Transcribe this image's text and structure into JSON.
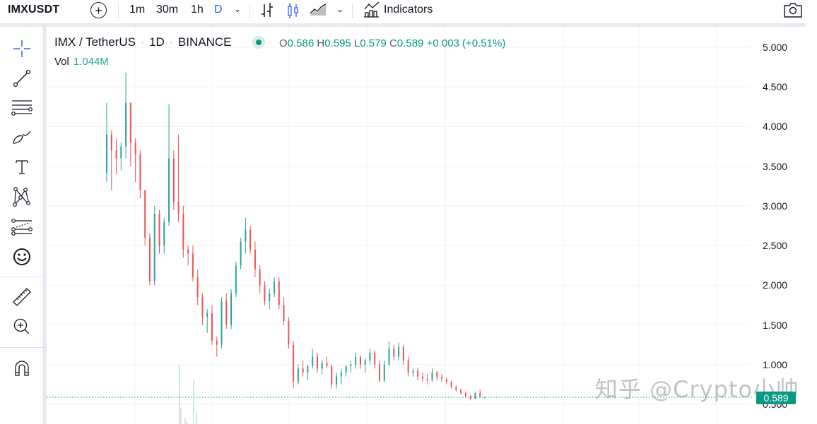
{
  "toolbar": {
    "symbol": "IMXUSDT",
    "add_symbol_icon": "plus-circle-icon",
    "timeframes": [
      {
        "label": "1m",
        "active": false
      },
      {
        "label": "30m",
        "active": false
      },
      {
        "label": "1h",
        "active": false
      },
      {
        "label": "D",
        "active": true
      }
    ],
    "timeframe_dropdown_icon": "chevron-down-icon",
    "chart_types": [
      {
        "icon": "bars-chart-icon",
        "active": false
      },
      {
        "icon": "candles-chart-icon",
        "active": true
      },
      {
        "icon": "area-chart-icon",
        "active": false
      }
    ],
    "chart_type_dropdown_icon": "chevron-down-icon",
    "indicators_label": "Indicators",
    "indicators_icon": "indicators-icon",
    "snapshot_icon": "camera-icon",
    "accent_color": "#2962ff"
  },
  "left_toolbar": {
    "tools": [
      {
        "name": "crosshair-tool",
        "icon": "crosshair-icon"
      },
      {
        "name": "trend-line-tool",
        "icon": "trend-line-icon"
      },
      {
        "name": "fib-retracement-tool",
        "icon": "horizontal-lines-icon"
      },
      {
        "name": "brush-tool",
        "icon": "brush-icon"
      },
      {
        "name": "text-tool",
        "icon": "text-icon"
      },
      {
        "name": "patterns-tool",
        "icon": "pattern-icon"
      },
      {
        "name": "prediction-tool",
        "icon": "forecast-icon"
      },
      {
        "name": "icons-tool",
        "icon": "smiley-icon"
      },
      {
        "name": "measure-tool",
        "icon": "ruler-icon"
      },
      {
        "name": "zoom-in-tool",
        "icon": "zoom-in-icon"
      },
      {
        "name": "magnet-tool",
        "icon": "magnet-icon"
      }
    ]
  },
  "legend": {
    "pair": "IMX / TetherUS",
    "interval": "1D",
    "exchange": "BINANCE",
    "open_key": "O",
    "open": "0.586",
    "high_key": "H",
    "high": "0.595",
    "low_key": "L",
    "low": "0.579",
    "close_key": "C",
    "close": "0.589",
    "change": "+0.003 (+0.51%)",
    "vol_label": "Vol",
    "vol_value": "1.044M"
  },
  "price_axis": {
    "labels": [
      "5.000",
      "4.500",
      "4.000",
      "3.500",
      "3.000",
      "2.500",
      "2.000",
      "1.500",
      "1.000",
      "0.500"
    ],
    "current_price": "0.589",
    "current_price_color": "#089981"
  },
  "colors": {
    "up": "#26a69a",
    "down": "#ef5350",
    "grid": "#f0f3fa"
  },
  "watermark": "知乎 @Crypto小帅",
  "chart_data": {
    "type": "candlestick",
    "title": "IMX / TetherUS · 1D · BINANCE",
    "ylim": [
      0.4,
      5.05
    ],
    "y_ticks": [
      5.0,
      4.5,
      4.0,
      3.5,
      3.0,
      2.5,
      2.0,
      1.5,
      1.0,
      0.5
    ],
    "grid": true,
    "candles": [
      [
        3.42,
        4.3,
        3.3,
        3.9
      ],
      [
        3.9,
        3.95,
        3.2,
        3.7
      ],
      [
        3.7,
        3.85,
        3.4,
        3.6
      ],
      [
        3.6,
        3.8,
        3.45,
        3.75
      ],
      [
        3.75,
        4.68,
        3.6,
        4.3
      ],
      [
        4.3,
        4.3,
        3.5,
        3.8
      ],
      [
        3.8,
        3.85,
        3.3,
        3.65
      ],
      [
        3.65,
        3.7,
        3.1,
        3.2
      ],
      [
        3.2,
        3.2,
        2.5,
        2.6
      ],
      [
        2.6,
        2.65,
        2.0,
        2.05
      ],
      [
        2.05,
        3.0,
        2.0,
        2.9
      ],
      [
        2.9,
        2.95,
        2.4,
        2.5
      ],
      [
        2.5,
        2.85,
        2.4,
        2.8
      ],
      [
        2.8,
        4.28,
        2.75,
        3.6
      ],
      [
        3.6,
        3.7,
        2.95,
        3.05
      ],
      [
        3.05,
        3.9,
        2.8,
        2.9
      ],
      [
        2.9,
        3.0,
        2.35,
        2.45
      ],
      [
        2.45,
        2.5,
        2.25,
        2.4
      ],
      [
        2.4,
        2.5,
        2.05,
        2.1
      ],
      [
        2.1,
        2.2,
        1.75,
        1.85
      ],
      [
        1.85,
        1.9,
        1.5,
        1.6
      ],
      [
        1.6,
        1.7,
        1.4,
        1.65
      ],
      [
        1.65,
        1.75,
        1.25,
        1.3
      ],
      [
        1.3,
        1.35,
        1.1,
        1.25
      ],
      [
        1.25,
        1.85,
        1.2,
        1.8
      ],
      [
        1.8,
        1.9,
        1.45,
        1.5
      ],
      [
        1.5,
        1.95,
        1.45,
        1.9
      ],
      [
        1.9,
        2.3,
        1.85,
        2.25
      ],
      [
        2.25,
        2.6,
        2.2,
        2.55
      ],
      [
        2.55,
        2.85,
        2.4,
        2.7
      ],
      [
        2.7,
        2.75,
        2.4,
        2.45
      ],
      [
        2.45,
        2.55,
        2.1,
        2.2
      ],
      [
        2.2,
        2.25,
        1.9,
        2.0
      ],
      [
        2.0,
        2.05,
        1.75,
        1.8
      ],
      [
        1.8,
        1.95,
        1.7,
        1.9
      ],
      [
        1.9,
        2.1,
        1.85,
        2.05
      ],
      [
        2.05,
        2.1,
        1.7,
        1.75
      ],
      [
        1.75,
        1.85,
        1.5,
        1.55
      ],
      [
        1.55,
        1.6,
        1.2,
        1.25
      ],
      [
        1.25,
        1.3,
        0.7,
        0.78
      ],
      [
        0.78,
        1.0,
        0.75,
        0.95
      ],
      [
        0.95,
        1.05,
        0.85,
        0.9
      ],
      [
        0.9,
        1.0,
        0.8,
        0.98
      ],
      [
        0.98,
        1.2,
        0.95,
        1.1
      ],
      [
        1.1,
        1.15,
        0.9,
        0.95
      ],
      [
        0.95,
        1.05,
        0.88,
        1.02
      ],
      [
        1.02,
        1.1,
        0.95,
        0.98
      ],
      [
        0.98,
        1.0,
        0.7,
        0.75
      ],
      [
        0.75,
        0.9,
        0.7,
        0.85
      ],
      [
        0.85,
        0.95,
        0.75,
        0.9
      ],
      [
        0.9,
        1.0,
        0.85,
        0.98
      ],
      [
        0.98,
        1.05,
        0.9,
        1.0
      ],
      [
        1.0,
        1.15,
        0.95,
        1.1
      ],
      [
        1.1,
        1.12,
        0.95,
        1.0
      ],
      [
        1.0,
        1.08,
        0.9,
        1.05
      ],
      [
        1.05,
        1.2,
        1.0,
        1.15
      ],
      [
        1.15,
        1.18,
        0.95,
        1.0
      ],
      [
        1.0,
        1.05,
        0.78,
        0.8
      ],
      [
        0.8,
        1.05,
        0.78,
        1.0
      ],
      [
        1.0,
        1.3,
        0.98,
        1.2
      ],
      [
        1.2,
        1.25,
        1.05,
        1.1
      ],
      [
        1.1,
        1.28,
        1.05,
        1.22
      ],
      [
        1.22,
        1.25,
        1.0,
        1.05
      ],
      [
        1.05,
        1.1,
        0.85,
        0.9
      ],
      [
        0.9,
        0.95,
        0.85,
        0.92
      ],
      [
        0.92,
        0.96,
        0.8,
        0.85
      ],
      [
        0.85,
        0.9,
        0.78,
        0.82
      ],
      [
        0.82,
        0.88,
        0.75,
        0.8
      ],
      [
        0.8,
        0.95,
        0.78,
        0.9
      ],
      [
        0.9,
        0.92,
        0.8,
        0.84
      ],
      [
        0.84,
        0.88,
        0.78,
        0.82
      ],
      [
        0.82,
        0.84,
        0.75,
        0.78
      ],
      [
        0.78,
        0.8,
        0.7,
        0.72
      ],
      [
        0.72,
        0.74,
        0.66,
        0.68
      ],
      [
        0.68,
        0.7,
        0.62,
        0.64
      ],
      [
        0.64,
        0.66,
        0.58,
        0.6
      ],
      [
        0.6,
        0.62,
        0.55,
        0.57
      ],
      [
        0.57,
        0.66,
        0.56,
        0.64
      ],
      [
        0.64,
        0.68,
        0.58,
        0.6
      ],
      [
        0.586,
        0.595,
        0.579,
        0.589
      ]
    ]
  }
}
